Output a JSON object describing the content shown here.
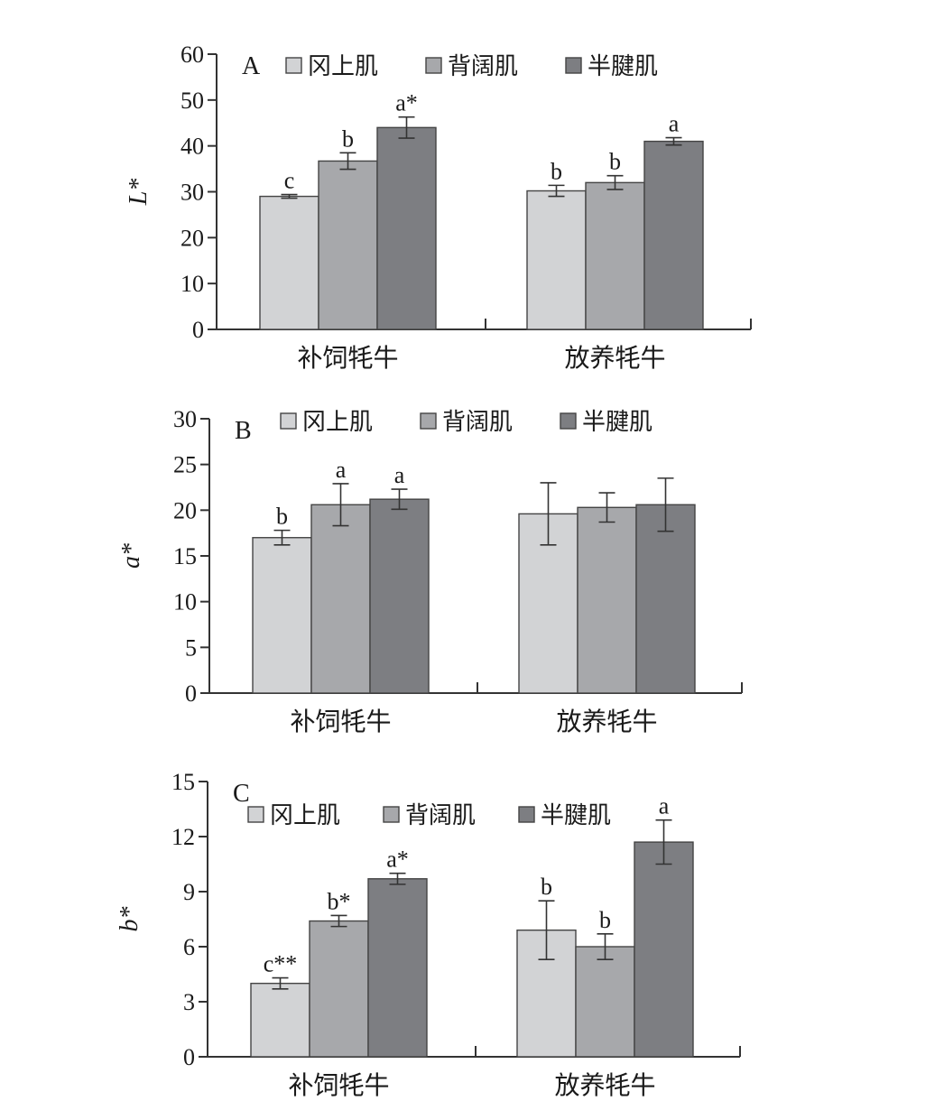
{
  "legend": {
    "series_names": [
      "冈上肌",
      "背阔肌",
      "半腱肌"
    ]
  },
  "colors": {
    "series": [
      "#d2d3d5",
      "#a7a8ab",
      "#7d7e82"
    ]
  },
  "chart_data": [
    {
      "type": "bar",
      "panel_label": "A",
      "ylabel": "L*",
      "ylim": [
        0,
        60
      ],
      "yticks": [
        0,
        10,
        20,
        30,
        40,
        50,
        60
      ],
      "categories": [
        "补饲牦牛",
        "放养牦牛"
      ],
      "legend_position": "top",
      "grid": false,
      "series": [
        {
          "name": "冈上肌",
          "values": [
            29,
            30.2
          ],
          "errors": [
            0.4,
            1.2
          ],
          "labels": [
            "c",
            "b"
          ]
        },
        {
          "name": "背阔肌",
          "values": [
            36.7,
            32
          ],
          "errors": [
            1.8,
            1.5
          ],
          "labels": [
            "b",
            "b"
          ]
        },
        {
          "name": "半腱肌",
          "values": [
            44,
            41
          ],
          "errors": [
            2.3,
            0.8
          ],
          "labels": [
            "a*",
            "a"
          ]
        }
      ]
    },
    {
      "type": "bar",
      "panel_label": "B",
      "ylabel": "a*",
      "ylim": [
        0,
        30
      ],
      "yticks": [
        0,
        5,
        10,
        15,
        20,
        25,
        30
      ],
      "categories": [
        "补饲牦牛",
        "放养牦牛"
      ],
      "legend_position": "top",
      "grid": false,
      "series": [
        {
          "name": "冈上肌",
          "values": [
            17,
            19.6
          ],
          "errors": [
            0.8,
            3.4
          ],
          "labels": [
            "b",
            ""
          ]
        },
        {
          "name": "背阔肌",
          "values": [
            20.6,
            20.3
          ],
          "errors": [
            2.3,
            1.6
          ],
          "labels": [
            "a",
            ""
          ]
        },
        {
          "name": "半腱肌",
          "values": [
            21.2,
            20.6
          ],
          "errors": [
            1.1,
            2.9
          ],
          "labels": [
            "a",
            ""
          ]
        }
      ]
    },
    {
      "type": "bar",
      "panel_label": "C",
      "ylabel": "b*",
      "ylim": [
        0,
        15
      ],
      "yticks": [
        0,
        3,
        6,
        9,
        12,
        15
      ],
      "categories": [
        "补饲牦牛",
        "放养牦牛"
      ],
      "legend_position": "top",
      "grid": false,
      "series": [
        {
          "name": "冈上肌",
          "values": [
            4,
            6.9
          ],
          "errors": [
            0.3,
            1.6
          ],
          "labels": [
            "c**",
            "b"
          ]
        },
        {
          "name": "背阔肌",
          "values": [
            7.4,
            6
          ],
          "errors": [
            0.3,
            0.7
          ],
          "labels": [
            "b*",
            "b"
          ]
        },
        {
          "name": "半腱肌",
          "values": [
            9.7,
            11.7
          ],
          "errors": [
            0.3,
            1.2
          ],
          "labels": [
            "a*",
            "a"
          ]
        }
      ]
    }
  ]
}
